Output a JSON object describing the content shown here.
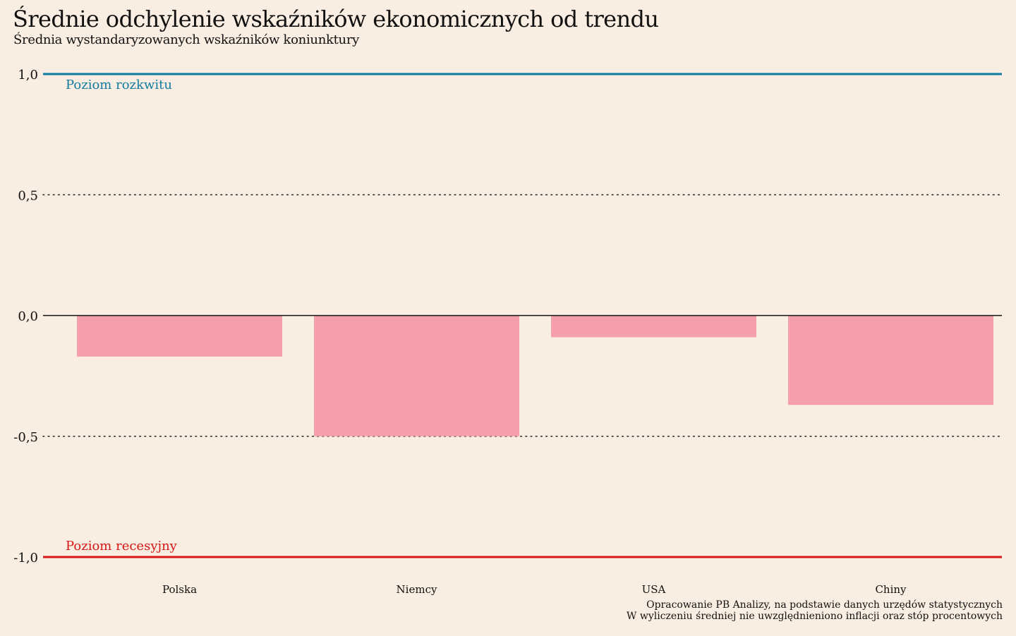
{
  "title": "Średnie odchylenie wskaźników ekonomicznych od trendu",
  "subtitle": "Średnia wystandaryzowanych wskaźników koniunktury",
  "source": {
    "line1": "Opracowanie PB Analizy, na podstawie danych urzędów statystycznych",
    "line2": "W wyliczeniu średniej nie uwzględnieniono inflacji oraz stóp procentowych"
  },
  "colors": {
    "background": "#faede1",
    "bar": "#f59fac",
    "boom": "#0f7ba0",
    "recession": "#d91616",
    "text": "#111111"
  },
  "chart_data": {
    "type": "bar",
    "title": "Średnie odchylenie wskaźników ekonomicznych od trendu",
    "subtitle": "Średnia wystandaryzowanych wskaźników koniunktury",
    "categories": [
      "Polska",
      "Niemcy",
      "USA",
      "Chiny"
    ],
    "values": [
      -0.17,
      -0.5,
      -0.09,
      -0.37
    ],
    "ylim": [
      -1.0,
      1.0
    ],
    "yticks": [
      {
        "value": 1.0,
        "label": "1,0"
      },
      {
        "value": 0.5,
        "label": "0,5"
      },
      {
        "value": 0.0,
        "label": "0,0"
      },
      {
        "value": -0.5,
        "label": "-0,5"
      },
      {
        "value": -1.0,
        "label": "-1,0"
      }
    ],
    "grid": "dotted",
    "reference_lines": [
      {
        "value": 1.0,
        "label": "Poziom rozkwitu",
        "color": "#0f7ba0"
      },
      {
        "value": -1.0,
        "label": "Poziom recesyjny",
        "color": "#d91616"
      }
    ],
    "xlabel": "",
    "ylabel": ""
  }
}
